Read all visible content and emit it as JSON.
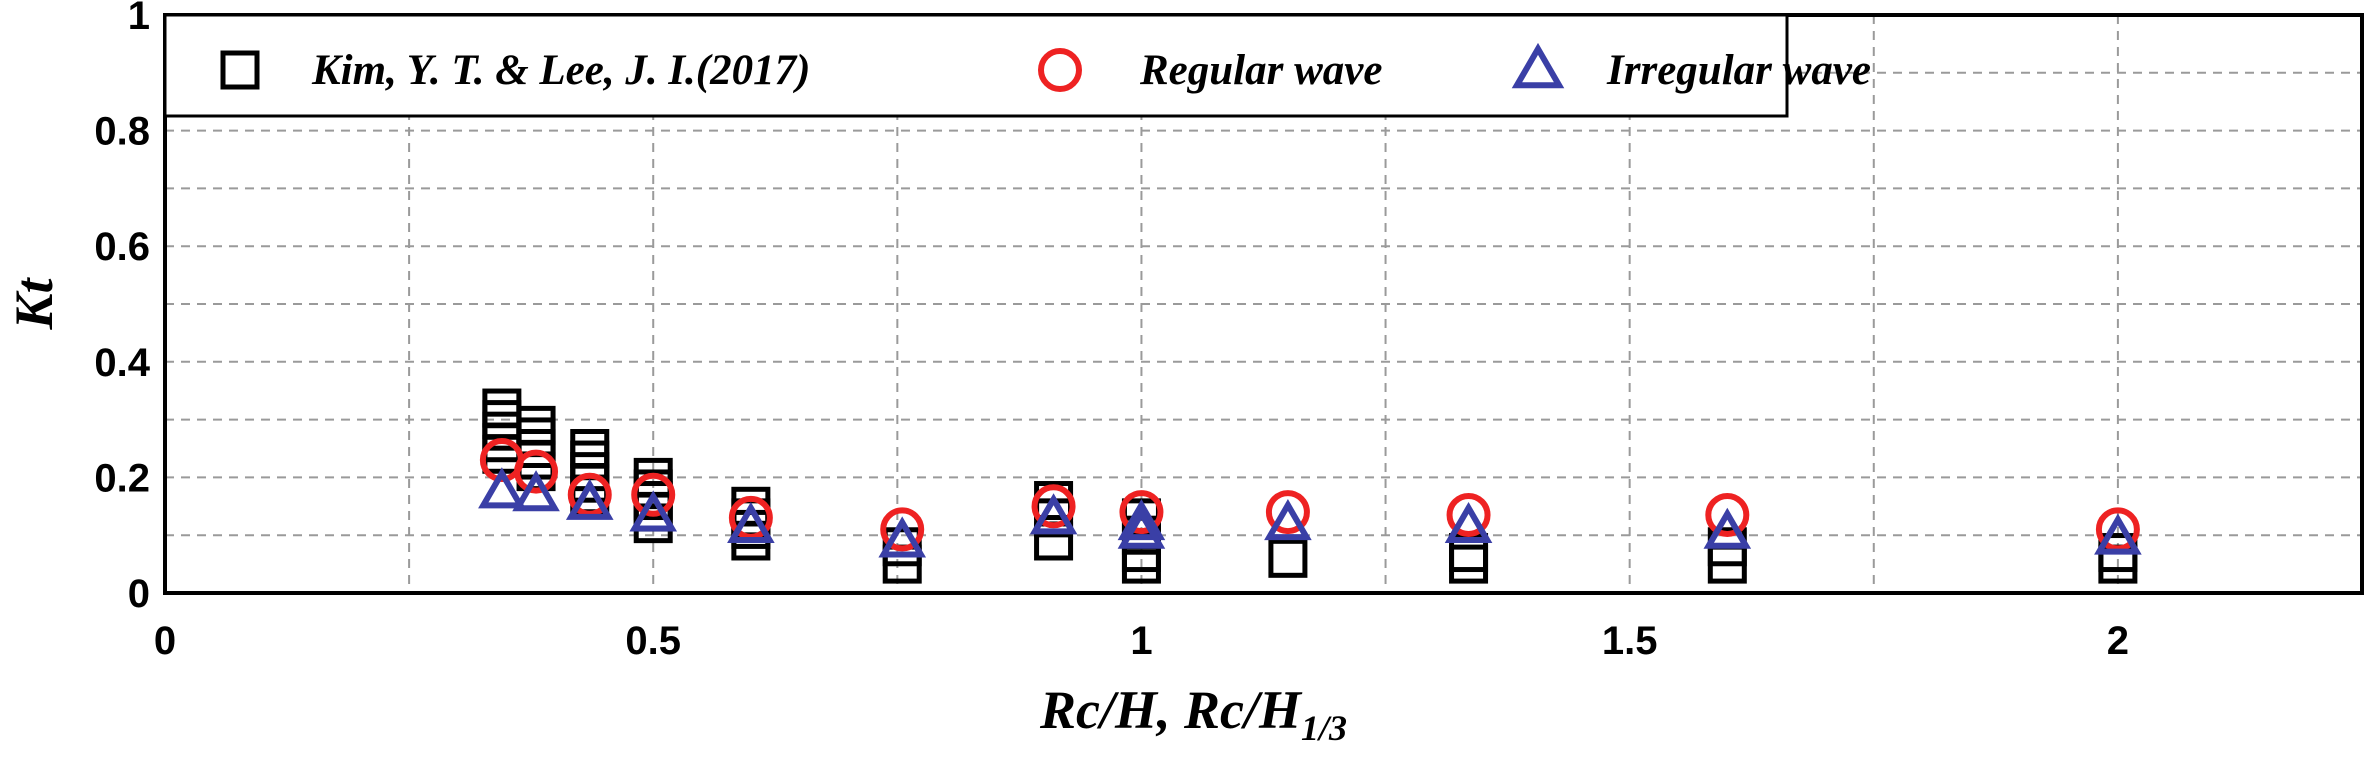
{
  "chart_data": {
    "type": "scatter",
    "xlabel": "Rc/H, Rc/H",
    "xlabel_subscript": "1/3",
    "ylabel": "Kt",
    "xlim": [
      0,
      2.25
    ],
    "ylim": [
      0,
      1
    ],
    "x_ticks": [
      "0",
      "0.5",
      "1",
      "1.5",
      "2"
    ],
    "y_ticks": [
      "0",
      "0.2",
      "0.4",
      "0.6",
      "0.8",
      "1"
    ],
    "grid": true,
    "legend_position": "top",
    "series": [
      {
        "name": "Kim, Y. T. & Lee, J. I.(2017)",
        "marker": "square",
        "color": "#000000",
        "points": [
          [
            0.345,
            0.32
          ],
          [
            0.345,
            0.3
          ],
          [
            0.345,
            0.28
          ],
          [
            0.345,
            0.26
          ],
          [
            0.345,
            0.24
          ],
          [
            0.38,
            0.29
          ],
          [
            0.38,
            0.27
          ],
          [
            0.38,
            0.25
          ],
          [
            0.38,
            0.23
          ],
          [
            0.38,
            0.21
          ],
          [
            0.435,
            0.25
          ],
          [
            0.435,
            0.23
          ],
          [
            0.435,
            0.21
          ],
          [
            0.435,
            0.19
          ],
          [
            0.435,
            0.17
          ],
          [
            0.5,
            0.2
          ],
          [
            0.5,
            0.18
          ],
          [
            0.5,
            0.16
          ],
          [
            0.5,
            0.14
          ],
          [
            0.5,
            0.12
          ],
          [
            0.6,
            0.15
          ],
          [
            0.6,
            0.13
          ],
          [
            0.6,
            0.11
          ],
          [
            0.6,
            0.09
          ],
          [
            0.755,
            0.08
          ],
          [
            0.755,
            0.05
          ],
          [
            0.91,
            0.16
          ],
          [
            0.91,
            0.13
          ],
          [
            0.91,
            0.09
          ],
          [
            1.0,
            0.13
          ],
          [
            1.0,
            0.1
          ],
          [
            1.0,
            0.07
          ],
          [
            1.0,
            0.05
          ],
          [
            1.15,
            0.06
          ],
          [
            1.335,
            0.07
          ],
          [
            1.335,
            0.05
          ],
          [
            1.6,
            0.08
          ],
          [
            1.6,
            0.05
          ],
          [
            2.0,
            0.07
          ],
          [
            2.0,
            0.05
          ]
        ]
      },
      {
        "name": "Regular wave",
        "marker": "circle",
        "color": "#ee2222",
        "points": [
          [
            0.345,
            0.23
          ],
          [
            0.38,
            0.21
          ],
          [
            0.435,
            0.17
          ],
          [
            0.5,
            0.17
          ],
          [
            0.6,
            0.13
          ],
          [
            0.755,
            0.11
          ],
          [
            0.91,
            0.15
          ],
          [
            1.0,
            0.14
          ],
          [
            1.15,
            0.14
          ],
          [
            1.335,
            0.135
          ],
          [
            1.6,
            0.135
          ],
          [
            2.0,
            0.11
          ]
        ]
      },
      {
        "name": "Irregular wave",
        "marker": "triangle",
        "color": "#3a3fa6",
        "points": [
          [
            0.345,
            0.175
          ],
          [
            0.38,
            0.17
          ],
          [
            0.435,
            0.155
          ],
          [
            0.5,
            0.135
          ],
          [
            0.6,
            0.115
          ],
          [
            0.755,
            0.09
          ],
          [
            0.91,
            0.13
          ],
          [
            1.0,
            0.12
          ],
          [
            1.0,
            0.105
          ],
          [
            1.15,
            0.12
          ],
          [
            1.335,
            0.115
          ],
          [
            1.6,
            0.105
          ],
          [
            2.0,
            0.095
          ]
        ]
      }
    ]
  }
}
